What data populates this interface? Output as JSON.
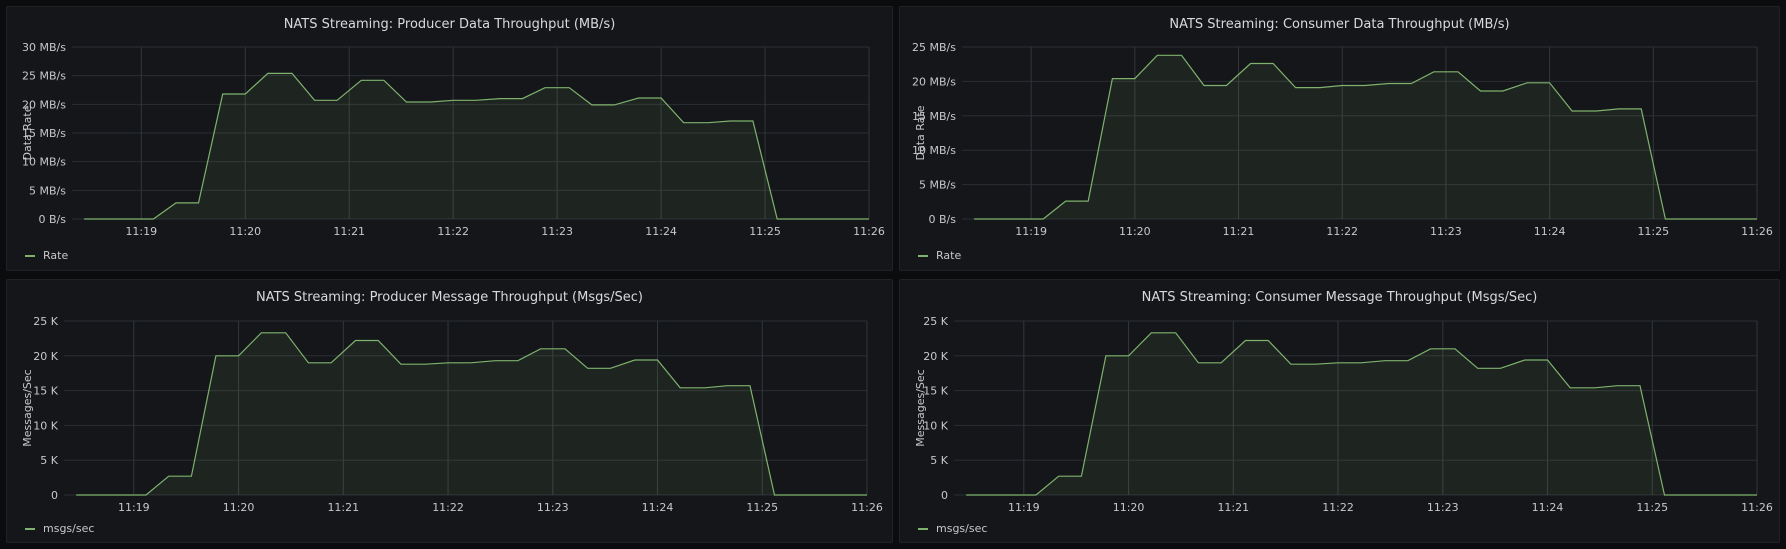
{
  "colors": {
    "line": "#7eb26d",
    "fill": "rgba(126,178,109,0.10)",
    "grid": "#2a2d32",
    "gridX": "#33363b"
  },
  "panels": [
    {
      "title": "NATS Streaming: Producer Data Throughput (MB/s)",
      "legend": "Rate",
      "chart_data": {
        "type": "area",
        "ylabel": "Data Rate",
        "yticks": [
          "0 B/s",
          "5 MB/s",
          "10 MB/s",
          "15 MB/s",
          "20 MB/s",
          "25 MB/s",
          "30 MB/s"
        ],
        "ylim": [
          0,
          30
        ],
        "xticks": [
          "11:19",
          "11:20",
          "11:21",
          "11:22",
          "11:23",
          "11:24",
          "11:25",
          "11:26"
        ],
        "x": [
          "11:18:27",
          "11:18:40",
          "11:18:53",
          "11:19:07",
          "11:19:20",
          "11:19:33",
          "11:19:47",
          "11:20:00",
          "11:20:13",
          "11:20:27",
          "11:20:40",
          "11:20:53",
          "11:21:07",
          "11:21:20",
          "11:21:33",
          "11:21:47",
          "11:22:00",
          "11:22:13",
          "11:22:27",
          "11:22:40",
          "11:22:53",
          "11:23:07",
          "11:23:20",
          "11:23:33",
          "11:23:47",
          "11:24:00",
          "11:24:13",
          "11:24:27",
          "11:24:40",
          "11:24:53",
          "11:25:07",
          "11:25:20",
          "11:25:33",
          "11:25:47",
          "11:26:00"
        ],
        "series": [
          {
            "name": "Rate",
            "values": [
              0,
              0,
              0,
              0,
              2.8,
              2.8,
              21.8,
              21.8,
              25.4,
              25.4,
              20.7,
              20.7,
              24.2,
              24.2,
              20.4,
              20.4,
              20.7,
              20.7,
              21.0,
              21.0,
              22.9,
              22.9,
              19.9,
              19.9,
              21.1,
              21.1,
              16.8,
              16.8,
              17.1,
              17.1,
              0,
              0,
              0,
              0,
              0
            ]
          }
        ]
      }
    },
    {
      "title": "NATS Streaming: Consumer Data Throughput (MB/s)",
      "legend": "Rate",
      "chart_data": {
        "type": "area",
        "ylabel": "Data Rate",
        "yticks": [
          "0 B/s",
          "5 MB/s",
          "10 MB/s",
          "15 MB/s",
          "20 MB/s",
          "25 MB/s"
        ],
        "ylim": [
          0,
          25
        ],
        "xticks": [
          "11:19",
          "11:20",
          "11:21",
          "11:22",
          "11:23",
          "11:24",
          "11:25",
          "11:26"
        ],
        "x": [
          "11:18:27",
          "11:18:40",
          "11:18:53",
          "11:19:07",
          "11:19:20",
          "11:19:33",
          "11:19:47",
          "11:20:00",
          "11:20:13",
          "11:20:27",
          "11:20:40",
          "11:20:53",
          "11:21:07",
          "11:21:20",
          "11:21:33",
          "11:21:47",
          "11:22:00",
          "11:22:13",
          "11:22:27",
          "11:22:40",
          "11:22:53",
          "11:23:07",
          "11:23:20",
          "11:23:33",
          "11:23:47",
          "11:24:00",
          "11:24:13",
          "11:24:27",
          "11:24:40",
          "11:24:53",
          "11:25:07",
          "11:25:20",
          "11:25:33",
          "11:25:47",
          "11:26:00"
        ],
        "series": [
          {
            "name": "Rate",
            "values": [
              0,
              0,
              0,
              0,
              2.6,
              2.6,
              20.4,
              20.4,
              23.8,
              23.8,
              19.4,
              19.4,
              22.6,
              22.6,
              19.1,
              19.1,
              19.4,
              19.4,
              19.7,
              19.7,
              21.4,
              21.4,
              18.6,
              18.6,
              19.8,
              19.8,
              15.7,
              15.7,
              16.0,
              16.0,
              0,
              0,
              0,
              0,
              0
            ]
          }
        ]
      }
    },
    {
      "title": "NATS Streaming: Producer Message Throughput (Msgs/Sec)",
      "legend": "msgs/sec",
      "chart_data": {
        "type": "area",
        "ylabel": "Messages/Sec",
        "yticks": [
          "0",
          "5 K",
          "10 K",
          "15 K",
          "20 K",
          "25 K"
        ],
        "ylim": [
          0,
          25000
        ],
        "xticks": [
          "11:19",
          "11:20",
          "11:21",
          "11:22",
          "11:23",
          "11:24",
          "11:25",
          "11:26"
        ],
        "x": [
          "11:18:27",
          "11:18:40",
          "11:18:53",
          "11:19:07",
          "11:19:20",
          "11:19:33",
          "11:19:47",
          "11:20:00",
          "11:20:13",
          "11:20:27",
          "11:20:40",
          "11:20:53",
          "11:21:07",
          "11:21:20",
          "11:21:33",
          "11:21:47",
          "11:22:00",
          "11:22:13",
          "11:22:27",
          "11:22:40",
          "11:22:53",
          "11:23:07",
          "11:23:20",
          "11:23:33",
          "11:23:47",
          "11:24:00",
          "11:24:13",
          "11:24:27",
          "11:24:40",
          "11:24:53",
          "11:25:07",
          "11:25:20",
          "11:25:33",
          "11:25:47",
          "11:26:00"
        ],
        "series": [
          {
            "name": "msgs/sec",
            "values": [
              0,
              0,
              0,
              0,
              2700,
              2700,
              20000,
              20000,
              23300,
              23300,
              19000,
              19000,
              22200,
              22200,
              18800,
              18800,
              19000,
              19000,
              19300,
              19300,
              21000,
              21000,
              18200,
              18200,
              19400,
              19400,
              15400,
              15400,
              15700,
              15700,
              0,
              0,
              0,
              0,
              0
            ]
          }
        ]
      }
    },
    {
      "title": "NATS Streaming: Consumer Message Throughput (Msgs/Sec)",
      "legend": "msgs/sec",
      "chart_data": {
        "type": "area",
        "ylabel": "Messages/Sec",
        "yticks": [
          "0",
          "5 K",
          "10 K",
          "15 K",
          "20 K",
          "25 K"
        ],
        "ylim": [
          0,
          25000
        ],
        "xticks": [
          "11:19",
          "11:20",
          "11:21",
          "11:22",
          "11:23",
          "11:24",
          "11:25",
          "11:26"
        ],
        "x": [
          "11:18:27",
          "11:18:40",
          "11:18:53",
          "11:19:07",
          "11:19:20",
          "11:19:33",
          "11:19:47",
          "11:20:00",
          "11:20:13",
          "11:20:27",
          "11:20:40",
          "11:20:53",
          "11:21:07",
          "11:21:20",
          "11:21:33",
          "11:21:47",
          "11:22:00",
          "11:22:13",
          "11:22:27",
          "11:22:40",
          "11:22:53",
          "11:23:07",
          "11:23:20",
          "11:23:33",
          "11:23:47",
          "11:24:00",
          "11:24:13",
          "11:24:27",
          "11:24:40",
          "11:24:53",
          "11:25:07",
          "11:25:20",
          "11:25:33",
          "11:25:47",
          "11:26:00"
        ],
        "series": [
          {
            "name": "msgs/sec",
            "values": [
              0,
              0,
              0,
              0,
              2700,
              2700,
              20000,
              20000,
              23300,
              23300,
              19000,
              19000,
              22200,
              22200,
              18800,
              18800,
              19000,
              19000,
              19300,
              19300,
              21000,
              21000,
              18200,
              18200,
              19400,
              19400,
              15400,
              15400,
              15700,
              15700,
              0,
              0,
              0,
              0,
              0
            ]
          }
        ]
      }
    }
  ]
}
